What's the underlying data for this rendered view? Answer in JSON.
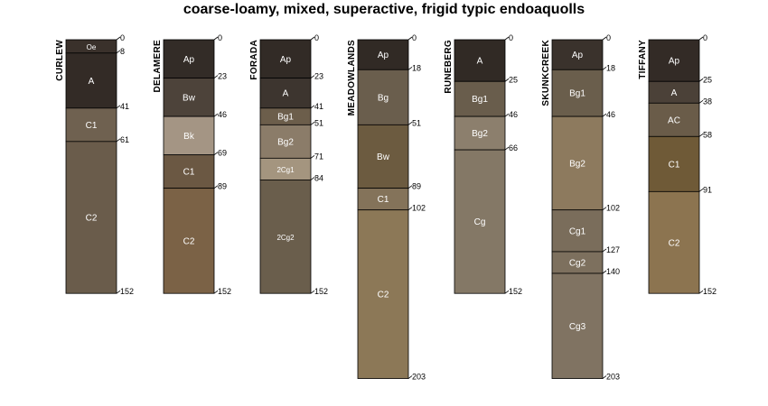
{
  "title": "coarse-loamy, mixed, superactive, frigid typic endoaquolls",
  "chart_data": {
    "type": "soil-profile-sketch",
    "depth_units": "cm",
    "max_depth": 203,
    "profiles": [
      {
        "name": "CURLEW",
        "horizons": [
          {
            "name": "Oe",
            "top": 0,
            "bottom": 8,
            "color": "#3a312b"
          },
          {
            "name": "A",
            "top": 8,
            "bottom": 41,
            "color": "#332b26"
          },
          {
            "name": "C1",
            "top": 41,
            "bottom": 61,
            "color": "#6f6150"
          },
          {
            "name": "C2",
            "top": 61,
            "bottom": 152,
            "color": "#6a5c4b"
          }
        ]
      },
      {
        "name": "DELAMERE",
        "horizons": [
          {
            "name": "Ap",
            "top": 0,
            "bottom": 23,
            "color": "#332c27"
          },
          {
            "name": "Bw",
            "top": 23,
            "bottom": 46,
            "color": "#4d433a"
          },
          {
            "name": "Bk",
            "top": 46,
            "bottom": 69,
            "color": "#a49584"
          },
          {
            "name": "C1",
            "top": 69,
            "bottom": 89,
            "color": "#6b5843"
          },
          {
            "name": "C2",
            "top": 89,
            "bottom": 152,
            "color": "#7b6246"
          }
        ]
      },
      {
        "name": "FORADA",
        "horizons": [
          {
            "name": "Ap",
            "top": 0,
            "bottom": 23,
            "color": "#322b26"
          },
          {
            "name": "A",
            "top": 23,
            "bottom": 41,
            "color": "#3d352f"
          },
          {
            "name": "Bg1",
            "top": 41,
            "bottom": 51,
            "color": "#6c5e4b"
          },
          {
            "name": "Bg2",
            "top": 51,
            "bottom": 71,
            "color": "#8b7c69"
          },
          {
            "name": "2Cg1",
            "top": 71,
            "bottom": 84,
            "color": "#a4957f"
          },
          {
            "name": "2Cg2",
            "top": 84,
            "bottom": 152,
            "color": "#6a5e4c"
          }
        ]
      },
      {
        "name": "MEADOWLANDS",
        "horizons": [
          {
            "name": "Ap",
            "top": 0,
            "bottom": 18,
            "color": "#312a25"
          },
          {
            "name": "Bg",
            "top": 18,
            "bottom": 51,
            "color": "#6a5e4d"
          },
          {
            "name": "Bw",
            "top": 51,
            "bottom": 89,
            "color": "#6c5b40"
          },
          {
            "name": "C1",
            "top": 89,
            "bottom": 102,
            "color": "#84735a"
          },
          {
            "name": "C2",
            "top": 102,
            "bottom": 203,
            "color": "#8c7857"
          }
        ]
      },
      {
        "name": "RUNEBERG",
        "horizons": [
          {
            "name": "A",
            "top": 0,
            "bottom": 25,
            "color": "#312a25"
          },
          {
            "name": "Bg1",
            "top": 25,
            "bottom": 46,
            "color": "#695d4c"
          },
          {
            "name": "Bg2",
            "top": 46,
            "bottom": 66,
            "color": "#8c7f6d"
          },
          {
            "name": "Cg",
            "top": 66,
            "bottom": 152,
            "color": "#847866"
          }
        ]
      },
      {
        "name": "SKUNKCREEK",
        "horizons": [
          {
            "name": "Ap",
            "top": 0,
            "bottom": 18,
            "color": "#3a322c"
          },
          {
            "name": "Bg1",
            "top": 18,
            "bottom": 46,
            "color": "#6a5e4c"
          },
          {
            "name": "Bg2",
            "top": 46,
            "bottom": 102,
            "color": "#8d7a5e"
          },
          {
            "name": "Cg1",
            "top": 102,
            "bottom": 127,
            "color": "#7a6d5b"
          },
          {
            "name": "Cg2",
            "top": 127,
            "bottom": 140,
            "color": "#7d705e"
          },
          {
            "name": "Cg3",
            "top": 140,
            "bottom": 203,
            "color": "#807362"
          }
        ]
      },
      {
        "name": "TIFFANY",
        "horizons": [
          {
            "name": "Ap",
            "top": 0,
            "bottom": 25,
            "color": "#332b26"
          },
          {
            "name": "A",
            "top": 25,
            "bottom": 38,
            "color": "#4b4138"
          },
          {
            "name": "AC",
            "top": 38,
            "bottom": 58,
            "color": "#6a5c49"
          },
          {
            "name": "C1",
            "top": 58,
            "bottom": 91,
            "color": "#6f5a37"
          },
          {
            "name": "C2",
            "top": 91,
            "bottom": 152,
            "color": "#8c7450"
          }
        ]
      }
    ]
  }
}
